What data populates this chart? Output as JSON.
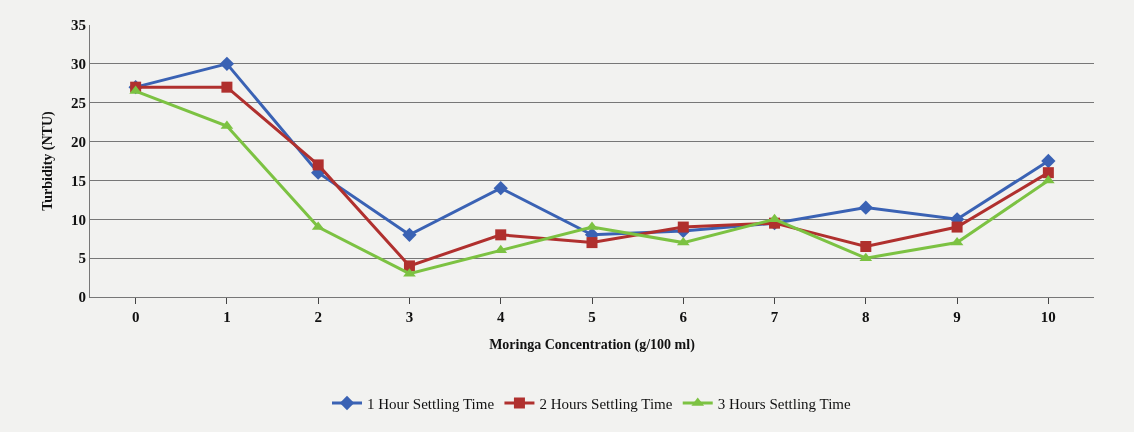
{
  "chart_data": {
    "type": "line",
    "xlabel": "Moringa Concentration (g/100 ml)",
    "ylabel": "Turbidity (NTU)",
    "categories": [
      "0",
      "1",
      "2",
      "3",
      "4",
      "5",
      "6",
      "7",
      "8",
      "9",
      "10"
    ],
    "series": [
      {
        "name": "1 Hour Settling Time",
        "color": "#3a62b4",
        "marker": "diamond",
        "values": [
          27,
          30,
          16,
          8,
          14,
          8,
          8.5,
          9.5,
          11.5,
          10,
          17.5
        ]
      },
      {
        "name": "2 Hours Settling Time",
        "color": "#b0302e",
        "marker": "square",
        "values": [
          27,
          27,
          17,
          4,
          8,
          7,
          9,
          9.5,
          6.5,
          9,
          16
        ]
      },
      {
        "name": "3 Hours Settling Time",
        "color": "#7cc242",
        "marker": "triangle",
        "values": [
          26.5,
          22,
          9,
          3,
          6,
          9,
          7,
          10,
          5,
          7,
          15
        ]
      }
    ],
    "ylim": [
      0,
      35
    ],
    "yticks": [
      0,
      5,
      10,
      15,
      20,
      25,
      30,
      35
    ],
    "grid": "y",
    "legend": "bottom"
  }
}
